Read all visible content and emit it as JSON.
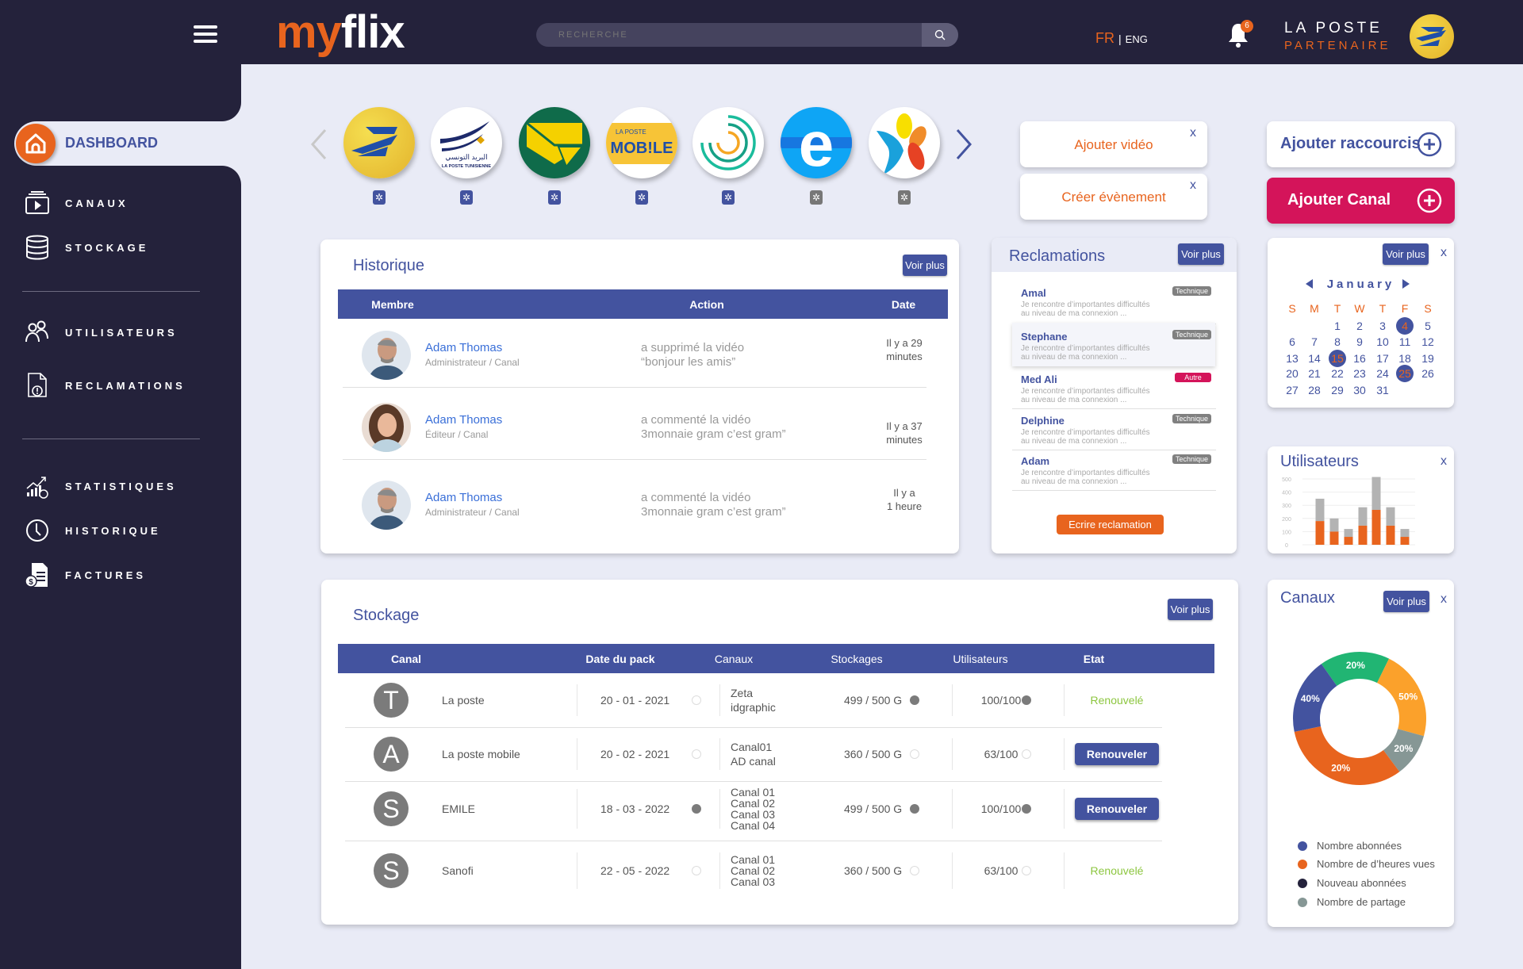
{
  "header": {
    "logo_text": "myflix",
    "search_placeholder": "RECHERCHE",
    "lang_active": "FR",
    "lang_sep": "|",
    "lang_other": "ENG",
    "notification_count": "6",
    "partner_name": "LA POSTE",
    "partner_role": "PARTENAIRE"
  },
  "sidebar": {
    "items": [
      {
        "label": "DASHBOARD",
        "icon": "home-icon",
        "active": true
      },
      {
        "label": "CANAUX",
        "icon": "video-channel-icon"
      },
      {
        "label": "STOCKAGE",
        "icon": "database-icon"
      },
      {
        "label": "UTILISATEURS",
        "icon": "users-icon"
      },
      {
        "label": "RECLAMATIONS",
        "icon": "complaint-file-icon"
      },
      {
        "label": "STATISTIQUES",
        "icon": "statistics-icon"
      },
      {
        "label": "HISTORIQUE",
        "icon": "clock-icon"
      },
      {
        "label": "FACTURES",
        "icon": "invoice-icon"
      }
    ]
  },
  "channels": {
    "logos": [
      {
        "name": "La Poste",
        "gear_color": "#43539f"
      },
      {
        "name": "La Poste Tunisienne",
        "text": "LA POSTE TUNISIENNE",
        "arabic": "البريد التونسي",
        "gear_color": "#43539f"
      },
      {
        "name": "Poste green",
        "gear_color": "#43539f"
      },
      {
        "name": "La Poste Mobile",
        "text_top": "LA POSTE",
        "text_main": "MOB!LE",
        "gear_color": "#43539f"
      },
      {
        "name": "Spiral",
        "gear_color": "#43539f"
      },
      {
        "name": "e",
        "text": "e",
        "gear_color": "#777777"
      },
      {
        "name": "Flower",
        "gear_color": "#777777"
      }
    ]
  },
  "actions": {
    "add_video": "Ajouter vidéo",
    "create_event": "Créer évènement",
    "add_shortcut": "Ajouter raccourcis",
    "add_channel": "Ajouter Canal",
    "close": "x",
    "add_channel_color": "#d4145a"
  },
  "historique": {
    "title": "Historique",
    "voir_plus": "Voir plus",
    "columns": [
      "Membre",
      "Action",
      "Date"
    ],
    "rows": [
      {
        "name": "Adam Thomas",
        "role": "Administrateur / Canal",
        "action1": "a supprimé la vidéo",
        "action2": "“bonjour les amis”",
        "date1": "Il y a 29",
        "date2": "minutes",
        "avatar": "man"
      },
      {
        "name": "Adam Thomas",
        "role": "Éditeur / Canal",
        "action1": "a commenté la vidéo",
        "action2": "3monnaie gram c’est gram”",
        "date1": "Il y a 37",
        "date2": "minutes",
        "avatar": "woman"
      },
      {
        "name": "Adam Thomas",
        "role": "Administrateur / Canal",
        "action1": "a commenté la vidéo",
        "action2": "3monnaie gram c’est gram”",
        "date1": "Il y a",
        "date2": "1 heure",
        "avatar": "man"
      }
    ]
  },
  "reclamations": {
    "title": "Reclamations",
    "voir_plus": "Voir plus",
    "items": [
      {
        "name": "Amal",
        "text1": "Je rencontre d’importantes difficultés",
        "text2": "au niveau de ma connexion ...",
        "tag": "Technique",
        "tag_color": "#808080"
      },
      {
        "name": "Stephane",
        "text1": "Je rencontre d’importantes difficultés",
        "text2": "au niveau de ma connexion ...",
        "tag": "Technique",
        "tag_color": "#808080",
        "highlighted": true
      },
      {
        "name": "Med Ali",
        "text1": "Je rencontre d’importantes difficultés",
        "text2": "au niveau de ma connexion ...",
        "tag": "Autre",
        "tag_color": "#d4145a"
      },
      {
        "name": "Delphine",
        "text1": "Je rencontre d’importantes difficultés",
        "text2": "au niveau de ma connexion ...",
        "tag": "Technique",
        "tag_color": "#808080"
      },
      {
        "name": "Adam",
        "text1": "Je rencontre d’importantes difficultés",
        "text2": "au niveau de ma connexion ...",
        "tag": "Technique",
        "tag_color": "#808080"
      }
    ],
    "write_button": "Ecrire reclamation"
  },
  "calendar": {
    "voir_plus": "Voir plus",
    "close": "x",
    "month": "January",
    "weekdays": [
      "S",
      "M",
      "T",
      "W",
      "T",
      "F",
      "S"
    ],
    "first_weekday_index": 2,
    "days_in_month": 31,
    "highlighted_days": [
      4,
      15,
      25
    ]
  },
  "utilisateurs": {
    "title": "Utilisateurs",
    "close": "x"
  },
  "canaux_card": {
    "title": "Canaux",
    "voir_plus": "Voir plus",
    "close": "x"
  },
  "chart_data": [
    {
      "type": "bar",
      "stacked": true,
      "ylim": [
        0,
        500
      ],
      "yticks": [
        "0",
        "100",
        "200",
        "300",
        "400",
        "500"
      ],
      "grid": true,
      "series": [
        {
          "color": "#e8641e",
          "values": [
            180,
            100,
            60,
            145,
            265,
            145,
            60
          ]
        },
        {
          "color": "#b3b3b3",
          "values": [
            170,
            100,
            60,
            140,
            250,
            140,
            60
          ]
        }
      ]
    },
    {
      "type": "pie",
      "donut": true,
      "slices": [
        {
          "label": "20%",
          "color": "#21b573",
          "arc_share": 17
        },
        {
          "label": "50%",
          "color": "#fba12b",
          "arc_share": 22
        },
        {
          "label": "20%",
          "color": "#869795",
          "arc_share": 10.5
        },
        {
          "label": "20%",
          "color": "#e8641e",
          "arc_share": 32
        },
        {
          "label": "40%",
          "color": "#43539f",
          "arc_share": 18.5
        }
      ],
      "legend": [
        {
          "label": "Nombre abonnées",
          "color": "#43539f"
        },
        {
          "label": "Nombre de d’heures vues",
          "color": "#e8641e"
        },
        {
          "label": "Nouveau abonnées",
          "color": "#24223b"
        },
        {
          "label": "Nombre de partage",
          "color": "#869795"
        }
      ],
      "legend_position": "bottom"
    }
  ],
  "stockage": {
    "title": "Stockage",
    "voir_plus": "Voir plus",
    "columns": [
      "Canal",
      "Date du pack",
      "Canaux",
      "Stockages",
      "Utilisateurs",
      "Etat"
    ],
    "rows": [
      {
        "initial": "T",
        "canal": "La poste",
        "date": "20 - 01 - 2021",
        "date_dot": "empty",
        "canaux": [
          "Zeta",
          "idgraphic"
        ],
        "stockage": "499 / 500 G",
        "stockage_dot": "filled",
        "users": "100/100",
        "users_dot": "filled",
        "etat": "Renouvelé",
        "etat_type": "done"
      },
      {
        "initial": "A",
        "canal": "La poste mobile",
        "date": "20 - 02 - 2021",
        "date_dot": "empty",
        "canaux": [
          "Canal01",
          "AD canal"
        ],
        "stockage": "360 / 500 G",
        "stockage_dot": "empty",
        "users": "63/100",
        "users_dot": "empty",
        "etat": "Renouveler",
        "etat_type": "button"
      },
      {
        "initial": "S",
        "canal": "EMILE",
        "date": "18 - 03 - 2022",
        "date_dot": "filled",
        "canaux": [
          "Canal 01",
          "Canal 02",
          "Canal 03",
          "Canal 04"
        ],
        "stockage": "499 / 500 G",
        "stockage_dot": "filled",
        "users": "100/100",
        "users_dot": "filled",
        "etat": "Renouveler",
        "etat_type": "button"
      },
      {
        "initial": "S",
        "canal": "Sanofi",
        "date": "22 - 05 - 2022",
        "date_dot": "empty",
        "canaux": [
          "Canal 01",
          "Canal 02",
          "Canal 03"
        ],
        "stockage": "360 / 500 G",
        "stockage_dot": "empty",
        "users": "63/100",
        "users_dot": "empty",
        "etat": "Renouvelé",
        "etat_type": "done"
      }
    ]
  }
}
